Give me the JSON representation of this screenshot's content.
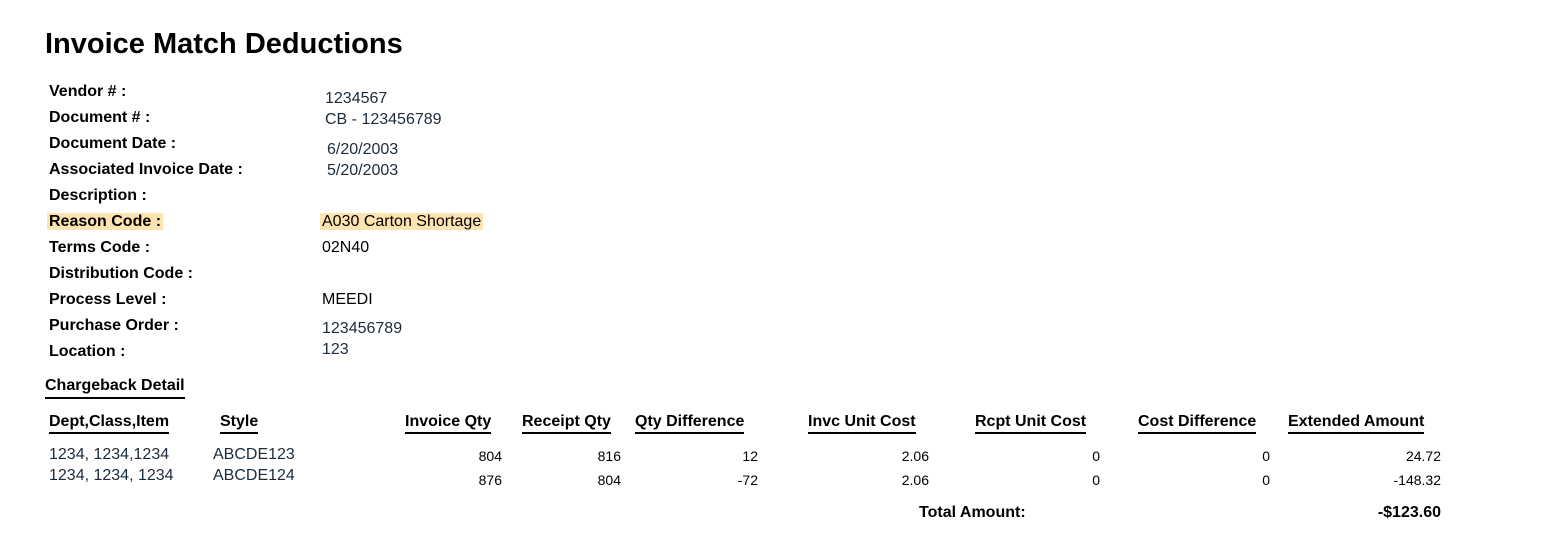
{
  "title": "Invoice Match Deductions",
  "fields": {
    "vendor": {
      "label": "Vendor # :",
      "value": "1234567"
    },
    "document": {
      "label": "Document # :",
      "value": "CB - 123456789"
    },
    "document_date": {
      "label": "Document Date :",
      "value": "6/20/2003"
    },
    "assoc_invoice_date": {
      "label": "Associated Invoice Date :",
      "value": "5/20/2003"
    },
    "description": {
      "label": "Description :",
      "value": ""
    },
    "reason_code": {
      "label": "Reason Code :",
      "value": "A030 Carton Shortage"
    },
    "terms_code": {
      "label": "Terms Code :",
      "value": "02N40"
    },
    "distribution_code": {
      "label": "Distribution Code :",
      "value": ""
    },
    "process_level": {
      "label": "Process Level :",
      "value": "MEEDI"
    },
    "purchase_order": {
      "label": "Purchase Order :",
      "value": "123456789"
    },
    "location": {
      "label": "Location :",
      "value": "123"
    }
  },
  "highlight_color": "#fde3b0",
  "detail": {
    "section_title": "Chargeback Detail",
    "columns": {
      "dept_class_item": "Dept,Class,Item",
      "style": "Style",
      "invoice_qty": "Invoice Qty",
      "receipt_qty": "Receipt Qty",
      "qty_difference": "Qty Difference",
      "invc_unit_cost": "Invc Unit Cost",
      "rcpt_unit_cost": "Rcpt Unit Cost",
      "cost_difference": "Cost Difference",
      "extended_amount": "Extended Amount"
    },
    "rows": [
      {
        "dept_class_item": "1234, 1234,1234",
        "style": "ABCDE123",
        "invoice_qty": "804",
        "receipt_qty": "816",
        "qty_difference": "12",
        "invc_unit_cost": "2.06",
        "rcpt_unit_cost": "0",
        "cost_difference": "0",
        "extended_amount": "24.72"
      },
      {
        "dept_class_item": "1234, 1234, 1234",
        "style": "ABCDE124",
        "invoice_qty": "876",
        "receipt_qty": "804",
        "qty_difference": "-72",
        "invc_unit_cost": "2.06",
        "rcpt_unit_cost": "0",
        "cost_difference": "0",
        "extended_amount": "-148.32"
      }
    ],
    "total_label": "Total Amount:",
    "total_value": "-$123.60"
  }
}
